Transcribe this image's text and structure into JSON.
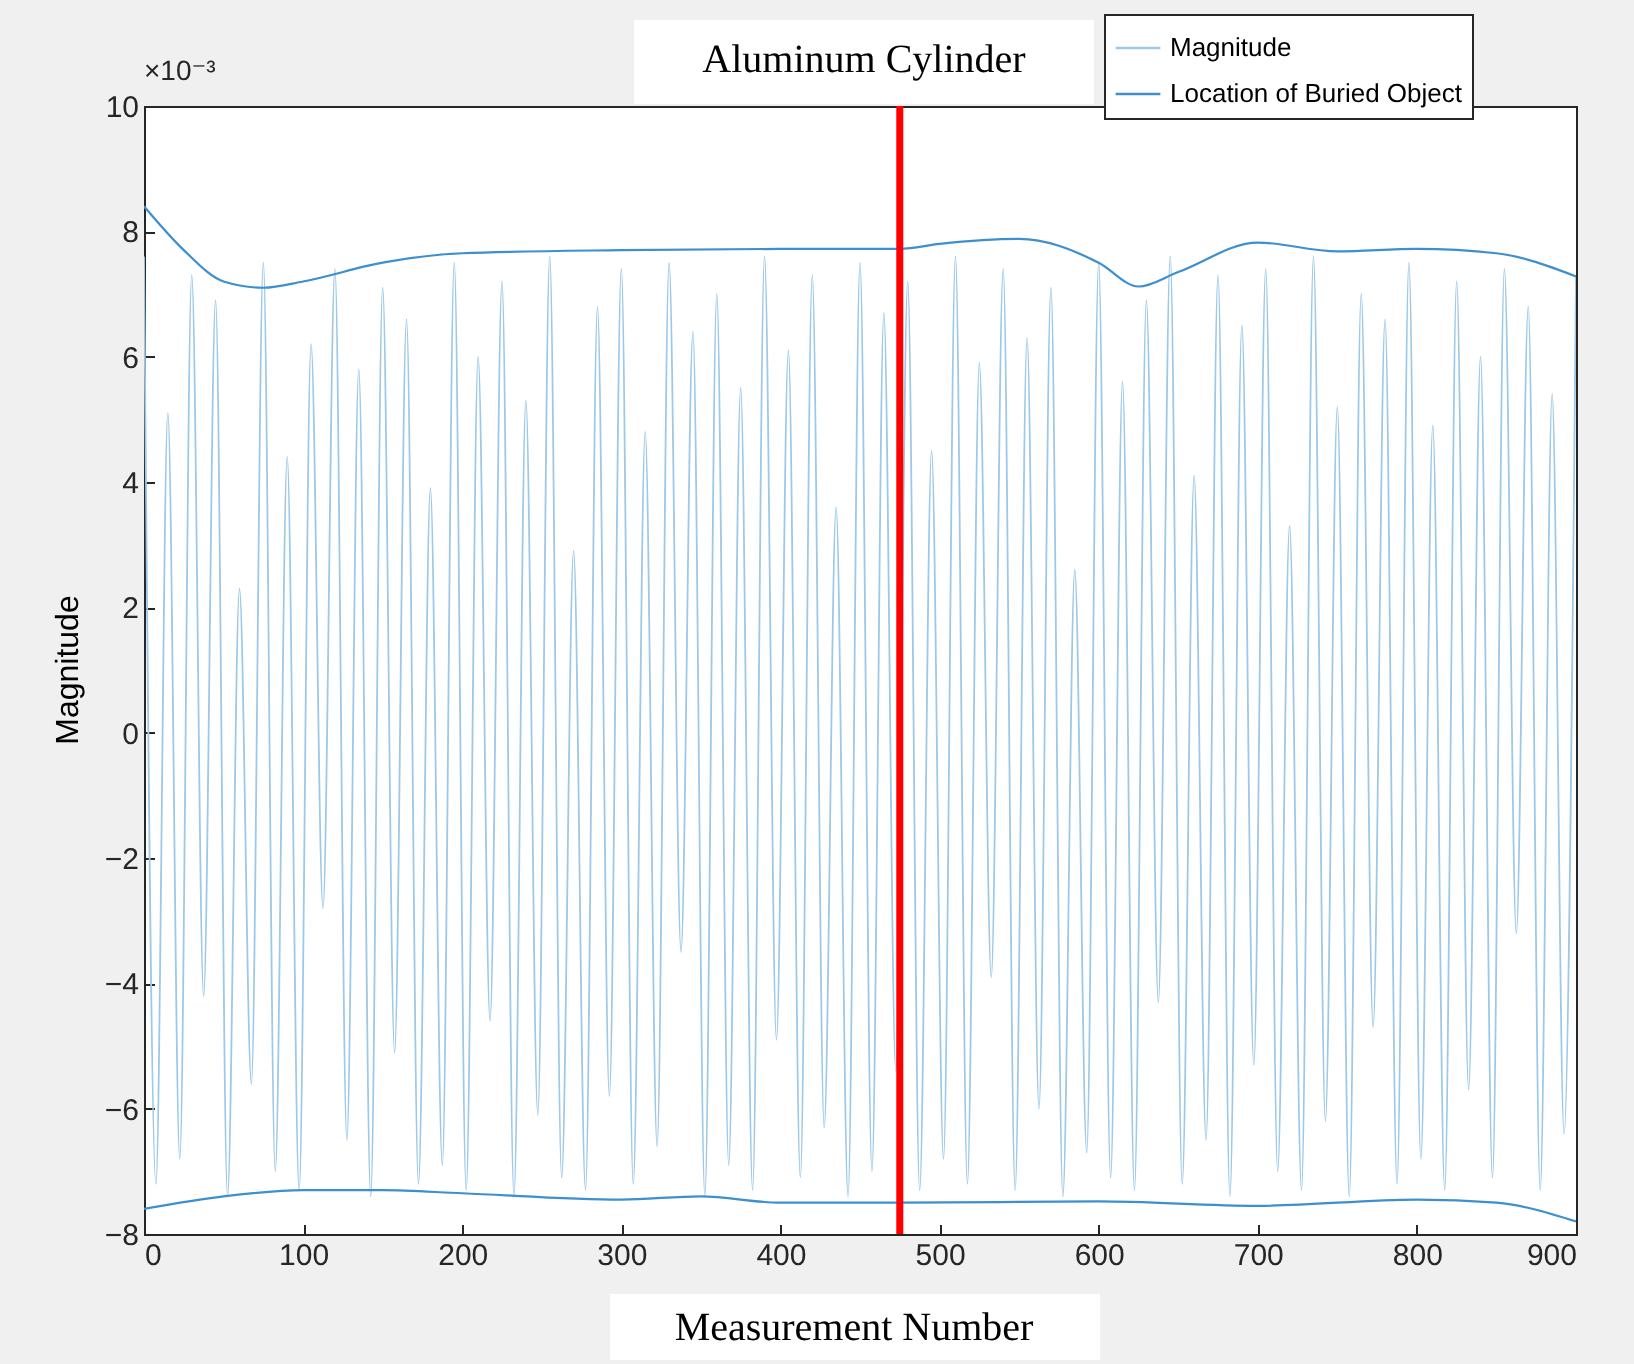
{
  "chart_data": {
    "type": "line",
    "title": "Aluminum Cylinder",
    "xlabel": "Measurement Number",
    "ylabel": "Magnitude",
    "annotations": [
      "×10⁻³"
    ],
    "xlim": [
      0,
      900
    ],
    "xticks": [
      0,
      100,
      200,
      300,
      400,
      500,
      600,
      700,
      800,
      900
    ],
    "ylim": [
      -8,
      10
    ],
    "yticks": [
      -8,
      -6,
      -4,
      -2,
      0,
      2,
      4,
      6,
      8,
      10
    ],
    "grid": false,
    "legend": "top right",
    "ref_lines": [
      {
        "axis": "x",
        "value": 475,
        "color": "#ff0000"
      }
    ],
    "series": [
      {
        "name": "Magnitude",
        "color": "#9dc8e8",
        "x": [
          0,
          7.5,
          15,
          22.5,
          30,
          37.5,
          45,
          52.5,
          60,
          67.5,
          75,
          82.5,
          90,
          97.5,
          105,
          112.5,
          120,
          127.5,
          135,
          142.5,
          150,
          157.5,
          165,
          172.5,
          180,
          187.5,
          195,
          202.5,
          210,
          217.5,
          225,
          232.5,
          240,
          247.5,
          255,
          262.5,
          270,
          277.5,
          285,
          292.5,
          300,
          307.5,
          315,
          322.5,
          330,
          337.5,
          345,
          352.5,
          360,
          367.5,
          375,
          382.5,
          390,
          397.5,
          405,
          412.5,
          420,
          427.5,
          435,
          442.5,
          450,
          457.5,
          465,
          472.5,
          480,
          487.5,
          495,
          502.5,
          510,
          517.5,
          525,
          532.5,
          540,
          547.5,
          555,
          562.5,
          570,
          577.5,
          585,
          592.5,
          600,
          607.5,
          615,
          622.5,
          630,
          637.5,
          645,
          652.5,
          660,
          667.5,
          675,
          682.5,
          690,
          697.5,
          705,
          712.5,
          720,
          727.5,
          735,
          742.5,
          750,
          757.5,
          765,
          772.5,
          780,
          787.5,
          795,
          802.5,
          810,
          817.5,
          825,
          832.5,
          840,
          847.5,
          855,
          862.5,
          870,
          877.5,
          885,
          892.5,
          900
        ],
        "values": [
          7.6,
          -7.2,
          5.1,
          -6.8,
          7.3,
          -4.2,
          6.9,
          -7.4,
          2.3,
          -5.6,
          7.5,
          -7.0,
          4.4,
          -7.3,
          6.2,
          -2.8,
          7.4,
          -6.5,
          5.8,
          -7.4,
          7.1,
          -5.1,
          6.6,
          -7.2,
          3.9,
          -6.9,
          7.5,
          -7.3,
          6.0,
          -4.6,
          7.2,
          -7.4,
          5.3,
          -6.1,
          7.6,
          -7.1,
          2.9,
          -7.3,
          6.8,
          -5.8,
          7.4,
          -7.2,
          4.8,
          -6.6,
          7.5,
          -3.5,
          6.4,
          -7.4,
          7.0,
          -6.9,
          5.5,
          -7.3,
          7.6,
          -4.9,
          6.1,
          -7.1,
          7.3,
          -6.3,
          3.6,
          -7.4,
          7.5,
          -7.0,
          6.7,
          -5.4,
          7.2,
          -7.3,
          4.5,
          -6.8,
          7.6,
          -7.2,
          5.9,
          -3.9,
          7.4,
          -7.3,
          6.3,
          -6.0,
          7.1,
          -7.4,
          2.6,
          -6.7,
          7.5,
          -7.1,
          5.6,
          -7.3,
          6.9,
          -4.3,
          7.6,
          -7.2,
          4.1,
          -6.5,
          7.3,
          -7.4,
          6.5,
          -5.3,
          7.4,
          -7.0,
          3.3,
          -7.3,
          7.6,
          -6.2,
          5.2,
          -7.4,
          7.0,
          -4.7,
          6.6,
          -7.2,
          7.5,
          -6.8,
          4.9,
          -7.3,
          7.2,
          -5.7,
          6.0,
          -7.1,
          7.4,
          -3.2,
          6.8,
          -7.3,
          5.4,
          -6.4,
          7.3
        ]
      },
      {
        "name": "Location of Buried Object",
        "color": "#3d8fcf",
        "x": [
          0,
          25,
          50,
          75,
          100,
          150,
          200,
          300,
          400,
          475,
          500,
          550,
          600,
          625,
          650,
          700,
          750,
          800,
          850,
          900
        ],
        "values": [
          8.4,
          7.7,
          7.2,
          7.1,
          7.2,
          7.5,
          7.65,
          7.7,
          7.72,
          7.72,
          7.8,
          7.88,
          7.5,
          7.12,
          7.35,
          7.82,
          7.68,
          7.72,
          7.65,
          7.28
        ]
      },
      {
        "color": "#3d8fcf",
        "x": [
          0,
          50,
          100,
          150,
          200,
          300,
          350,
          400,
          475,
          600,
          700,
          800,
          850,
          900
        ],
        "values": [
          -7.6,
          -7.4,
          -7.3,
          -7.3,
          -7.35,
          -7.45,
          -7.4,
          -7.5,
          -7.5,
          -7.48,
          -7.55,
          -7.45,
          -7.5,
          -7.8
        ]
      }
    ]
  }
}
